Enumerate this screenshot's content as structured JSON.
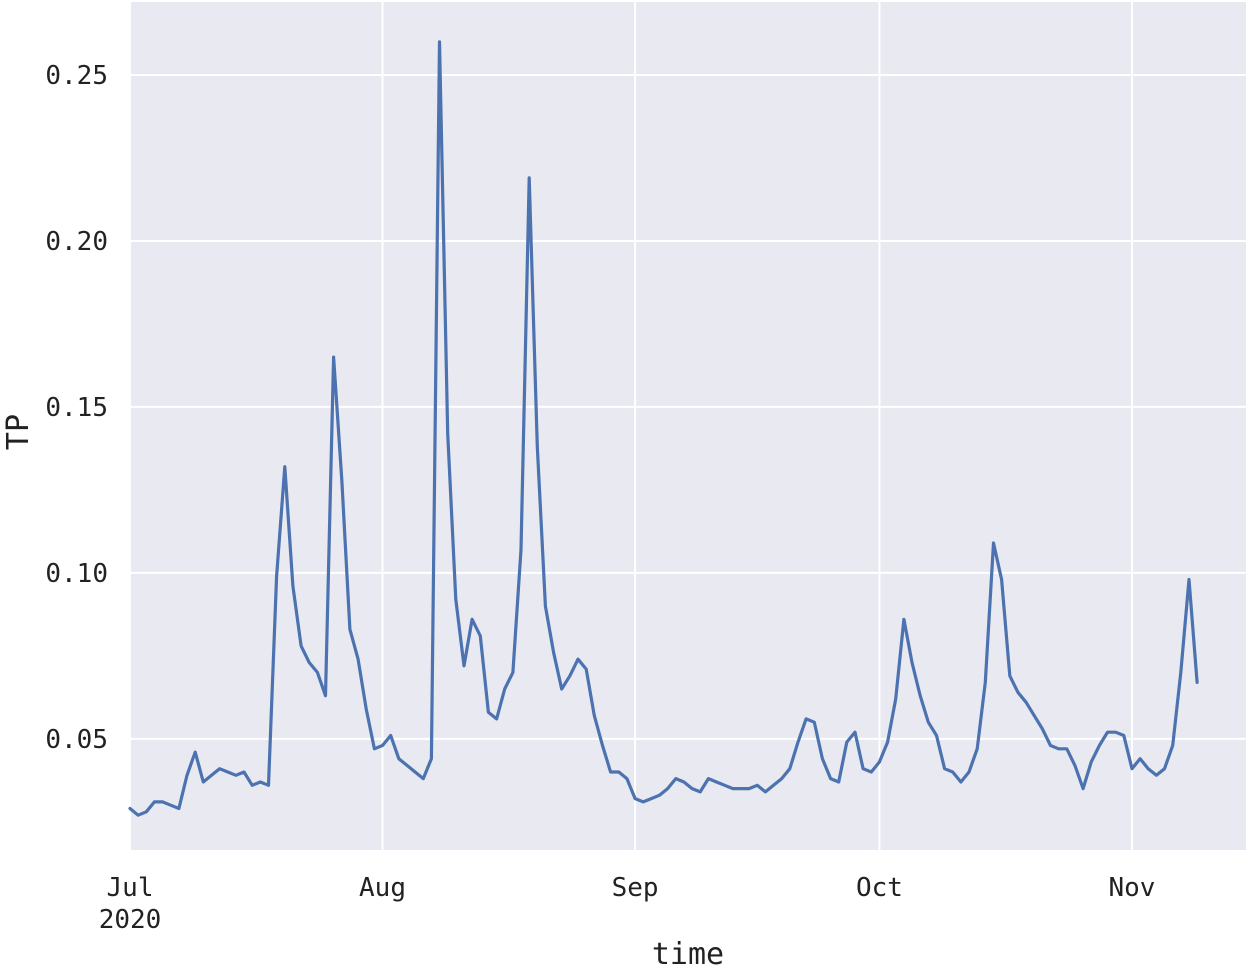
{
  "chart_data": {
    "type": "line",
    "xlabel": "time",
    "ylabel": "TP",
    "ylim": [
      0.0165,
      0.272
    ],
    "x_range": [
      "2020-07-01",
      "2020-11-07"
    ],
    "x_tick_labels": [
      {
        "date": "2020-07-01",
        "label": "Jul",
        "sublabel": "2020"
      },
      {
        "date": "2020-08-01",
        "label": "Aug"
      },
      {
        "date": "2020-09-01",
        "label": "Sep"
      },
      {
        "date": "2020-10-01",
        "label": "Oct"
      },
      {
        "date": "2020-11-01",
        "label": "Nov"
      }
    ],
    "y_ticks": [
      0.05,
      0.1,
      0.15,
      0.2,
      0.25
    ],
    "y_tick_labels": [
      "0.05",
      "0.10",
      "0.15",
      "0.20",
      "0.25"
    ],
    "grid": true,
    "background": "#e9e9f1",
    "grid_color": "#ffffff",
    "series": [
      {
        "color": "#4c72b0",
        "points": [
          [
            "2020-07-01",
            0.029
          ],
          [
            "2020-07-02",
            0.027
          ],
          [
            "2020-07-03",
            0.028
          ],
          [
            "2020-07-04",
            0.031
          ],
          [
            "2020-07-05",
            0.031
          ],
          [
            "2020-07-06",
            0.03
          ],
          [
            "2020-07-07",
            0.029
          ],
          [
            "2020-07-08",
            0.039
          ],
          [
            "2020-07-09",
            0.046
          ],
          [
            "2020-07-10",
            0.037
          ],
          [
            "2020-07-11",
            0.039
          ],
          [
            "2020-07-12",
            0.041
          ],
          [
            "2020-07-13",
            0.04
          ],
          [
            "2020-07-14",
            0.039
          ],
          [
            "2020-07-15",
            0.04
          ],
          [
            "2020-07-16",
            0.036
          ],
          [
            "2020-07-17",
            0.037
          ],
          [
            "2020-07-18",
            0.036
          ],
          [
            "2020-07-19",
            0.099
          ],
          [
            "2020-07-20",
            0.132
          ],
          [
            "2020-07-21",
            0.096
          ],
          [
            "2020-07-22",
            0.078
          ],
          [
            "2020-07-23",
            0.073
          ],
          [
            "2020-07-24",
            0.07
          ],
          [
            "2020-07-25",
            0.063
          ],
          [
            "2020-07-26",
            0.165
          ],
          [
            "2020-07-27",
            0.128
          ],
          [
            "2020-07-28",
            0.083
          ],
          [
            "2020-07-29",
            0.074
          ],
          [
            "2020-07-30",
            0.059
          ],
          [
            "2020-07-31",
            0.047
          ],
          [
            "2020-08-01",
            0.048
          ],
          [
            "2020-08-02",
            0.051
          ],
          [
            "2020-08-03",
            0.044
          ],
          [
            "2020-08-04",
            0.042
          ],
          [
            "2020-08-05",
            0.04
          ],
          [
            "2020-08-06",
            0.038
          ],
          [
            "2020-08-07",
            0.044
          ],
          [
            "2020-08-08",
            0.26
          ],
          [
            "2020-08-09",
            0.142
          ],
          [
            "2020-08-10",
            0.092
          ],
          [
            "2020-08-11",
            0.072
          ],
          [
            "2020-08-12",
            0.086
          ],
          [
            "2020-08-13",
            0.081
          ],
          [
            "2020-08-14",
            0.058
          ],
          [
            "2020-08-15",
            0.056
          ],
          [
            "2020-08-16",
            0.065
          ],
          [
            "2020-08-17",
            0.07
          ],
          [
            "2020-08-18",
            0.107
          ],
          [
            "2020-08-19",
            0.219
          ],
          [
            "2020-08-20",
            0.138
          ],
          [
            "2020-08-21",
            0.09
          ],
          [
            "2020-08-22",
            0.076
          ],
          [
            "2020-08-23",
            0.065
          ],
          [
            "2020-08-24",
            0.069
          ],
          [
            "2020-08-25",
            0.074
          ],
          [
            "2020-08-26",
            0.071
          ],
          [
            "2020-08-27",
            0.057
          ],
          [
            "2020-08-28",
            0.048
          ],
          [
            "2020-08-29",
            0.04
          ],
          [
            "2020-08-30",
            0.04
          ],
          [
            "2020-08-31",
            0.038
          ],
          [
            "2020-09-01",
            0.032
          ],
          [
            "2020-09-02",
            0.031
          ],
          [
            "2020-09-03",
            0.032
          ],
          [
            "2020-09-04",
            0.033
          ],
          [
            "2020-09-05",
            0.035
          ],
          [
            "2020-09-06",
            0.038
          ],
          [
            "2020-09-07",
            0.037
          ],
          [
            "2020-09-08",
            0.035
          ],
          [
            "2020-09-09",
            0.034
          ],
          [
            "2020-09-10",
            0.038
          ],
          [
            "2020-09-11",
            0.037
          ],
          [
            "2020-09-12",
            0.036
          ],
          [
            "2020-09-13",
            0.035
          ],
          [
            "2020-09-14",
            0.035
          ],
          [
            "2020-09-15",
            0.035
          ],
          [
            "2020-09-16",
            0.036
          ],
          [
            "2020-09-17",
            0.034
          ],
          [
            "2020-09-18",
            0.036
          ],
          [
            "2020-09-19",
            0.038
          ],
          [
            "2020-09-20",
            0.041
          ],
          [
            "2020-09-21",
            0.049
          ],
          [
            "2020-09-22",
            0.056
          ],
          [
            "2020-09-23",
            0.055
          ],
          [
            "2020-09-24",
            0.044
          ],
          [
            "2020-09-25",
            0.038
          ],
          [
            "2020-09-26",
            0.037
          ],
          [
            "2020-09-27",
            0.049
          ],
          [
            "2020-09-28",
            0.052
          ],
          [
            "2020-09-29",
            0.041
          ],
          [
            "2020-09-30",
            0.04
          ],
          [
            "2020-10-01",
            0.043
          ],
          [
            "2020-10-02",
            0.049
          ],
          [
            "2020-10-03",
            0.062
          ],
          [
            "2020-10-04",
            0.086
          ],
          [
            "2020-10-05",
            0.073
          ],
          [
            "2020-10-06",
            0.063
          ],
          [
            "2020-10-07",
            0.055
          ],
          [
            "2020-10-08",
            0.051
          ],
          [
            "2020-10-09",
            0.041
          ],
          [
            "2020-10-10",
            0.04
          ],
          [
            "2020-10-11",
            0.037
          ],
          [
            "2020-10-12",
            0.04
          ],
          [
            "2020-10-13",
            0.047
          ],
          [
            "2020-10-14",
            0.067
          ],
          [
            "2020-10-15",
            0.109
          ],
          [
            "2020-10-16",
            0.098
          ],
          [
            "2020-10-17",
            0.069
          ],
          [
            "2020-10-18",
            0.064
          ],
          [
            "2020-10-19",
            0.061
          ],
          [
            "2020-10-20",
            0.057
          ],
          [
            "2020-10-21",
            0.053
          ],
          [
            "2020-10-22",
            0.048
          ],
          [
            "2020-10-23",
            0.047
          ],
          [
            "2020-10-24",
            0.047
          ],
          [
            "2020-10-25",
            0.042
          ],
          [
            "2020-10-26",
            0.035
          ],
          [
            "2020-10-27",
            0.043
          ],
          [
            "2020-10-28",
            0.048
          ],
          [
            "2020-10-29",
            0.052
          ],
          [
            "2020-10-30",
            0.052
          ],
          [
            "2020-10-31",
            0.051
          ],
          [
            "2020-11-01",
            0.041
          ],
          [
            "2020-11-02",
            0.044
          ],
          [
            "2020-11-03",
            0.041
          ],
          [
            "2020-11-04",
            0.039
          ],
          [
            "2020-11-05",
            0.041
          ],
          [
            "2020-11-06",
            0.048
          ],
          [
            "2020-11-07",
            0.07
          ],
          [
            "2020-11-08",
            0.098
          ],
          [
            "2020-11-09",
            0.067
          ]
        ]
      }
    ]
  }
}
